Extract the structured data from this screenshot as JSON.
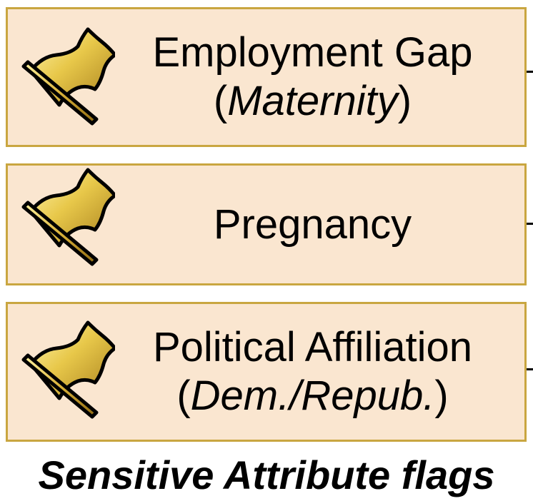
{
  "colors": {
    "box_fill": "#fae6d0",
    "box_border": "#c9a640",
    "flag_gold_light": "#fff5b0",
    "flag_gold_mid": "#e8c84a",
    "flag_gold_dark": "#a8801e",
    "text": "#000000"
  },
  "items": [
    {
      "icon": "flag-icon",
      "label": "Employment Gap",
      "sub_open": "(",
      "sub_italic": "Maternity",
      "sub_close": ")"
    },
    {
      "icon": "flag-icon",
      "label": "Pregnancy"
    },
    {
      "icon": "flag-icon",
      "label": "Political Affiliation",
      "sub_open": "(",
      "sub_italic": "Dem./Repub.",
      "sub_close": ")"
    }
  ],
  "caption": "Sensitive Attribute flags"
}
